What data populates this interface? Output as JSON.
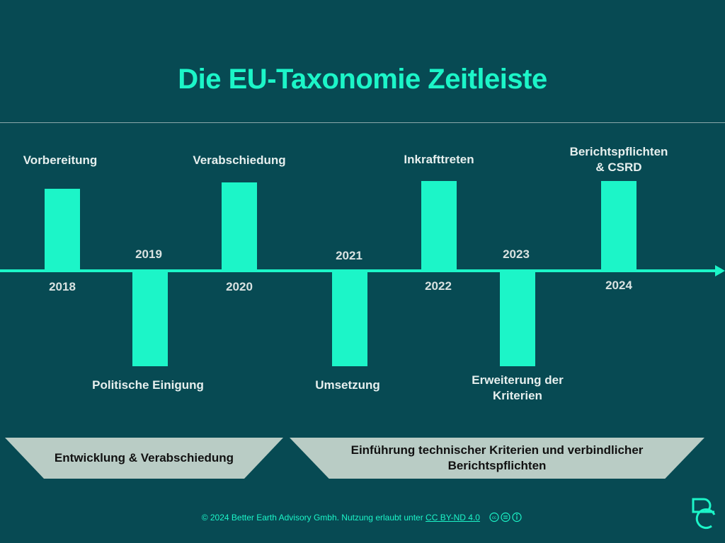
{
  "title": "Die EU-Taxonomie Zeitleiste",
  "milestones": [
    {
      "year": "2018",
      "label": "Vorbereitung"
    },
    {
      "year": "2019",
      "label": "Politische Einigung"
    },
    {
      "year": "2020",
      "label": "Verabschiedung"
    },
    {
      "year": "2021",
      "label": "Umsetzung"
    },
    {
      "year": "2022",
      "label": "Inkrafttreten"
    },
    {
      "year": "2023",
      "label": "Erweiterung der\nKriterien"
    },
    {
      "year": "2024",
      "label": "Berichtspflichten\n& CSRD"
    }
  ],
  "phases": [
    {
      "label": "Entwicklung & Verabschiedung"
    },
    {
      "label": "Einführung technischer Kriterien und verbindlicher Berichtspflichten"
    }
  ],
  "footer": {
    "text": "© 2024 Better Earth Advisory Gmbh.  Nutzung erlaubt unter ",
    "license": "CC BY-ND 4.0"
  },
  "colors": {
    "background": "#074a53",
    "accent": "#1cf5c8",
    "banner": "#b9ccc5"
  },
  "icons": [
    "cc-icon",
    "cc-nd-icon",
    "cc-by-icon",
    "better-earth-logo"
  ]
}
